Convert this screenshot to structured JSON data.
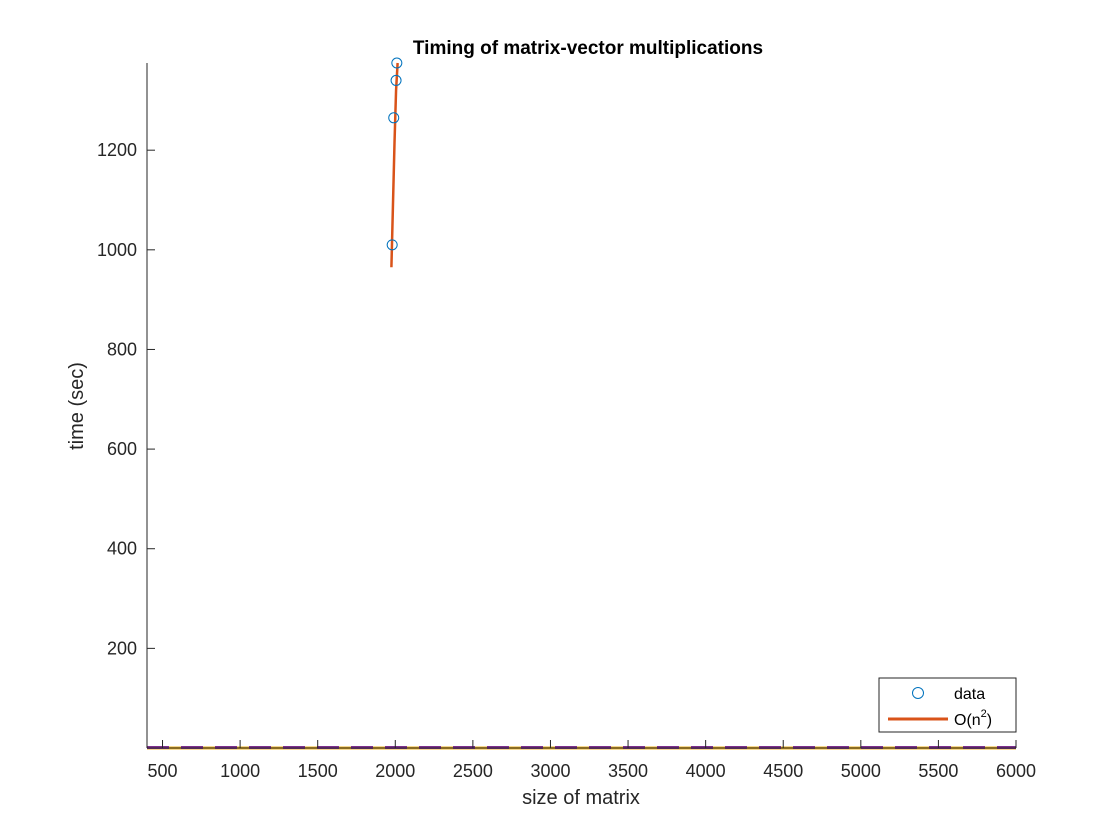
{
  "chart_data": {
    "type": "line",
    "title": "Timing of matrix-vector multiplications",
    "xlabel": "size of matrix",
    "ylabel": "time (sec)",
    "xlim": [
      400,
      6000
    ],
    "ylim": [
      0,
      1375
    ],
    "x_ticks": [
      500,
      1000,
      1500,
      2000,
      2500,
      3000,
      3500,
      4000,
      4500,
      5000,
      5500,
      6000
    ],
    "y_ticks": [
      200,
      400,
      600,
      800,
      1000,
      1200
    ],
    "legend_position": "bottom-right",
    "colors": {
      "data": "#0072BD",
      "fit": "#D95319",
      "dash1": "#EDB120",
      "dash2": "#7E2F8E"
    },
    "series": [
      {
        "name": "data",
        "style": "markers",
        "x": [
          1980,
          1990,
          2005,
          2010
        ],
        "y": [
          1010,
          1265,
          1340,
          1375
        ]
      },
      {
        "name": "O(n2)",
        "label_base": "O(n",
        "label_sup": "2",
        "label_end": ")",
        "style": "line",
        "x": [
          1975,
          1985,
          1995,
          2005,
          2015
        ],
        "y": [
          965,
          1090,
          1215,
          1320,
          1375
        ]
      },
      {
        "style": "dashed",
        "x": [
          400,
          6000
        ],
        "y": [
          0,
          0
        ]
      },
      {
        "style": "dashed",
        "x": [
          400,
          6000
        ],
        "y": [
          0,
          0
        ]
      }
    ]
  }
}
